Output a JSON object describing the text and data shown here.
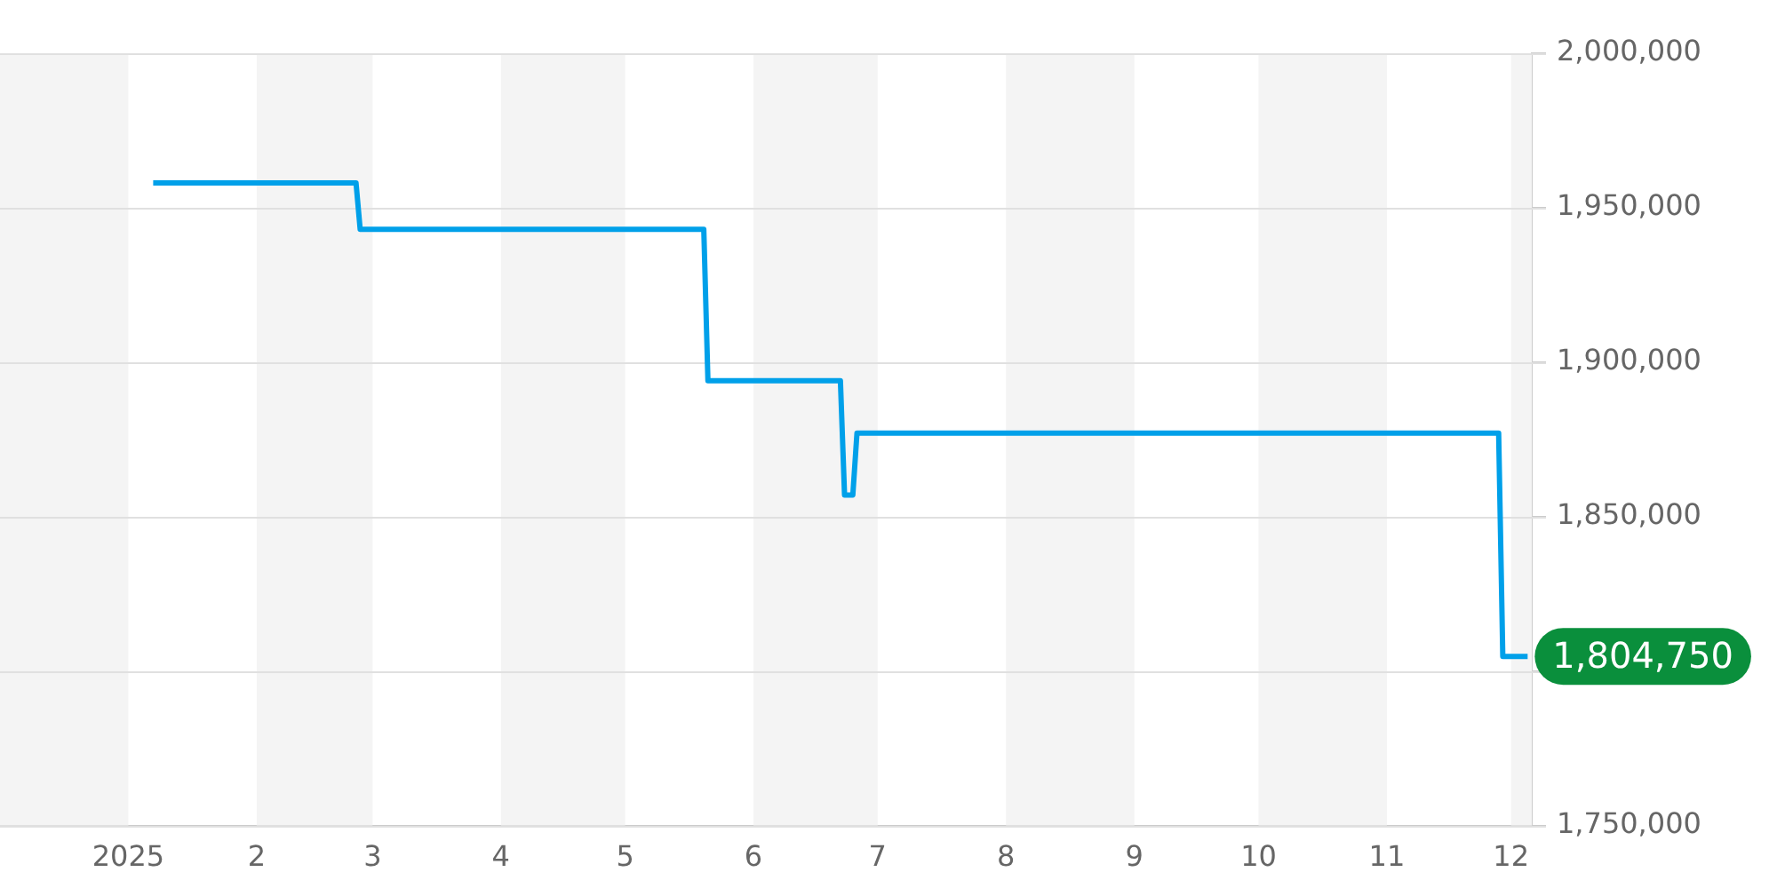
{
  "chart_data": {
    "type": "line",
    "x": [
      "2025-01-07",
      "2025-02-25",
      "2025-02-26",
      "2025-05-20",
      "2025-05-21",
      "2025-06-22",
      "2025-06-23",
      "2025-06-25",
      "2025-06-26",
      "2025-11-28",
      "2025-11-29",
      "2025-12-05"
    ],
    "series": [
      {
        "color": "#00a0e9",
        "values": [
          1958000,
          1958000,
          1943000,
          1943000,
          1894000,
          1894000,
          1857000,
          1857000,
          1877000,
          1877000,
          1804750,
          1804750
        ]
      }
    ],
    "xlim": [
      "2024-12-01",
      "2025-12-06"
    ],
    "xticks": [
      {
        "value": "2025-01-01",
        "label": "2025"
      },
      {
        "value": "2025-02-01",
        "label": "2"
      },
      {
        "value": "2025-03-01",
        "label": "3"
      },
      {
        "value": "2025-04-01",
        "label": "4"
      },
      {
        "value": "2025-05-01",
        "label": "5"
      },
      {
        "value": "2025-06-01",
        "label": "6"
      },
      {
        "value": "2025-07-01",
        "label": "7"
      },
      {
        "value": "2025-08-01",
        "label": "8"
      },
      {
        "value": "2025-09-01",
        "label": "9"
      },
      {
        "value": "2025-10-01",
        "label": "10"
      },
      {
        "value": "2025-11-01",
        "label": "11"
      },
      {
        "value": "2025-12-01",
        "label": "12"
      }
    ],
    "ylim": [
      1750000,
      2000000
    ],
    "yticks": [
      {
        "value": 1750000,
        "label": "1,750,000"
      },
      {
        "value": 1800000,
        "label": null
      },
      {
        "value": 1850000,
        "label": "1,850,000"
      },
      {
        "value": 1900000,
        "label": "1,900,000"
      },
      {
        "value": 1950000,
        "label": "1,950,000"
      },
      {
        "value": 2000000,
        "label": "2,000,000"
      }
    ],
    "bands": [
      {
        "axis": "x",
        "from": "2024-12-01",
        "to": "2025-01-01",
        "color": "#f4f4f4"
      },
      {
        "axis": "x",
        "from": "2025-02-01",
        "to": "2025-03-01",
        "color": "#f4f4f4"
      },
      {
        "axis": "x",
        "from": "2025-04-01",
        "to": "2025-05-01",
        "color": "#f4f4f4"
      },
      {
        "axis": "x",
        "from": "2025-06-01",
        "to": "2025-07-01",
        "color": "#f4f4f4"
      },
      {
        "axis": "x",
        "from": "2025-08-01",
        "to": "2025-09-01",
        "color": "#f4f4f4"
      },
      {
        "axis": "x",
        "from": "2025-10-01",
        "to": "2025-11-01",
        "color": "#f4f4f4"
      },
      {
        "axis": "x",
        "from": "2025-12-01",
        "to": "2025-12-06",
        "color": "#f4f4f4"
      }
    ],
    "annotations": [
      {
        "text": "1,804,750",
        "x": "2025-12-05",
        "y": 1804750
      }
    ],
    "grid": "y",
    "legend": false,
    "marker": "none",
    "line_style": "solid"
  }
}
